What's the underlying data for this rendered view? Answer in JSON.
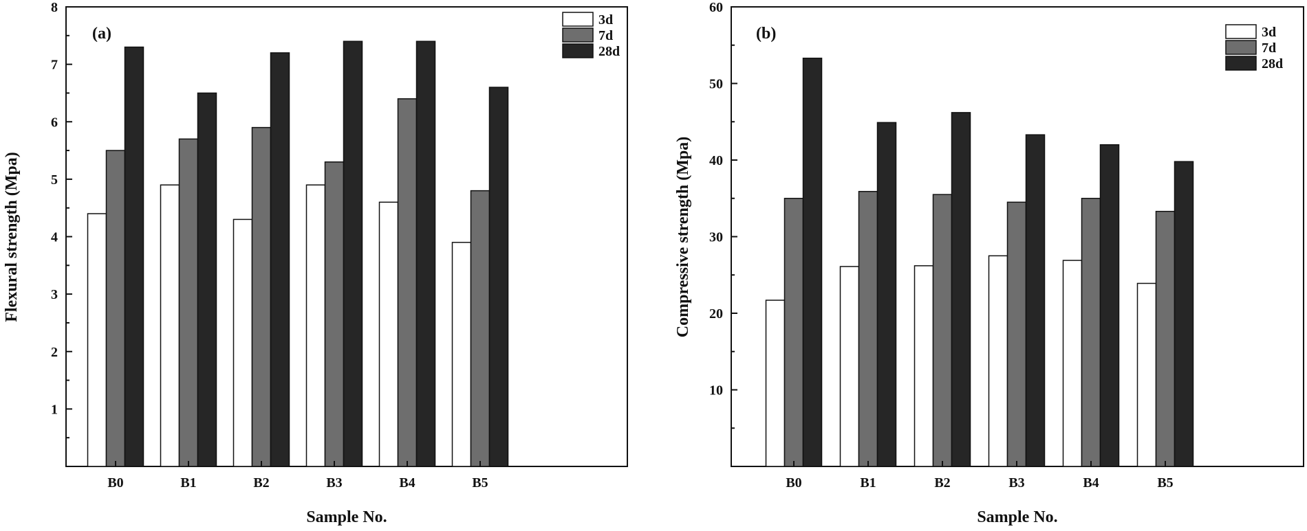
{
  "chart_data": [
    {
      "type": "bar",
      "panel_label": "(a)",
      "title": "",
      "xlabel": "Sample No.",
      "ylabel": "Flexural strength (Mpa)",
      "categories": [
        "B0",
        "B1",
        "B2",
        "B3",
        "B4",
        "B5"
      ],
      "ylim": [
        0,
        8
      ],
      "yticks": [
        1,
        2,
        3,
        4,
        5,
        6,
        7,
        8
      ],
      "yminor": 0.5,
      "legend_position": "top-right",
      "series": [
        {
          "name": "3d",
          "color": "#ffffff",
          "values": [
            4.4,
            4.9,
            4.3,
            4.9,
            4.6,
            3.9
          ]
        },
        {
          "name": "7d",
          "color": "#6e6e6e",
          "values": [
            5.5,
            5.7,
            5.9,
            5.3,
            6.4,
            4.8
          ]
        },
        {
          "name": "28d",
          "color": "#262626",
          "values": [
            7.3,
            6.5,
            7.2,
            7.4,
            7.4,
            6.6
          ]
        }
      ]
    },
    {
      "type": "bar",
      "panel_label": "(b)",
      "title": "",
      "xlabel": "Sample No.",
      "ylabel": "Compressive strength (Mpa)",
      "categories": [
        "B0",
        "B1",
        "B2",
        "B3",
        "B4",
        "B5"
      ],
      "ylim": [
        0,
        60
      ],
      "yticks": [
        10,
        20,
        30,
        40,
        50,
        60
      ],
      "yminor": 5,
      "legend_position": "top-right",
      "series": [
        {
          "name": "3d",
          "color": "#ffffff",
          "values": [
            21.7,
            26.1,
            26.2,
            27.5,
            26.9,
            23.9
          ]
        },
        {
          "name": "7d",
          "color": "#6e6e6e",
          "values": [
            35.0,
            35.9,
            35.5,
            34.5,
            35.0,
            33.3
          ]
        },
        {
          "name": "28d",
          "color": "#262626",
          "values": [
            53.3,
            44.9,
            46.2,
            43.3,
            42.0,
            39.8
          ]
        }
      ]
    }
  ]
}
